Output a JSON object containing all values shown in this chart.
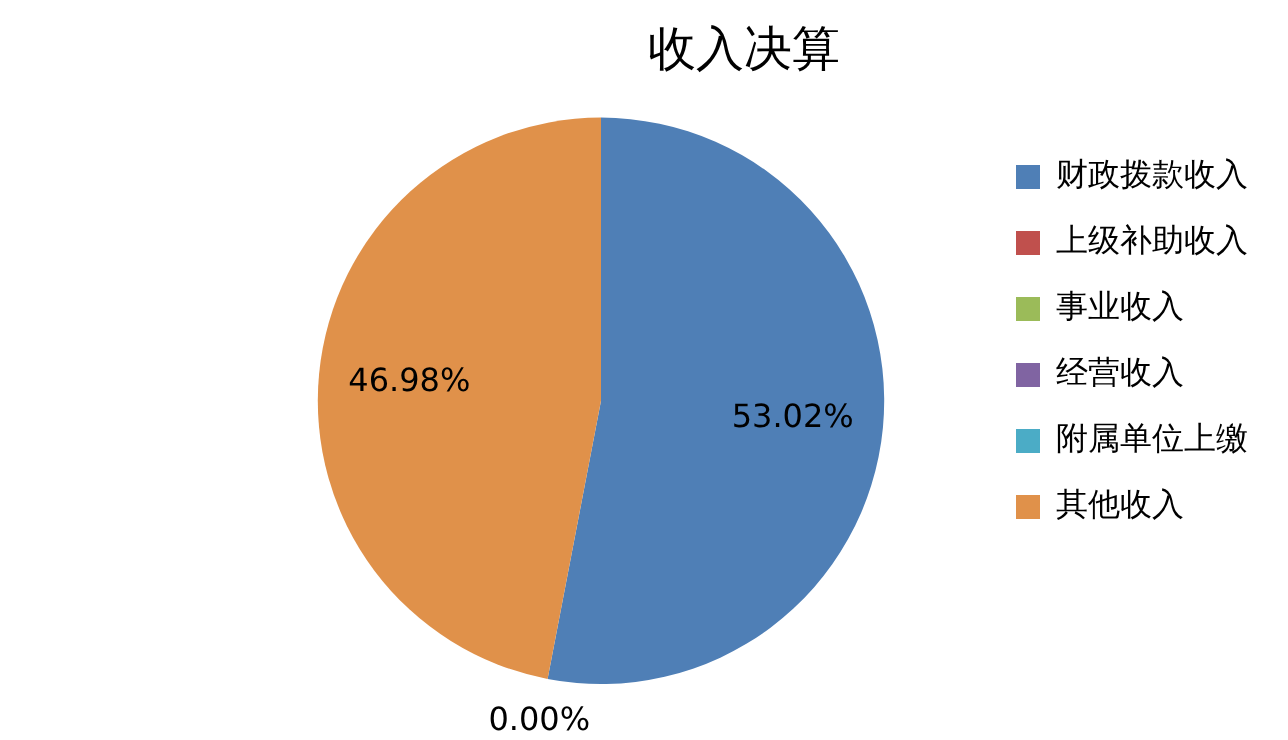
{
  "chart_data": {
    "type": "pie",
    "title": "收入决算",
    "categories": [
      "财政拨款收入",
      "上级补助收入",
      "事业收入",
      "经营收入",
      "附属单位上缴",
      "其他收入"
    ],
    "values": [
      53.02,
      0,
      0,
      0,
      0,
      46.98
    ],
    "colors": [
      "#4f7fb6",
      "#c0504d",
      "#9bbb59",
      "#8064a2",
      "#4bacc6",
      "#e0914a"
    ],
    "value_labels": [
      "53.02%",
      "0.00%",
      null,
      null,
      null,
      "46.98%"
    ],
    "legend": "right"
  }
}
